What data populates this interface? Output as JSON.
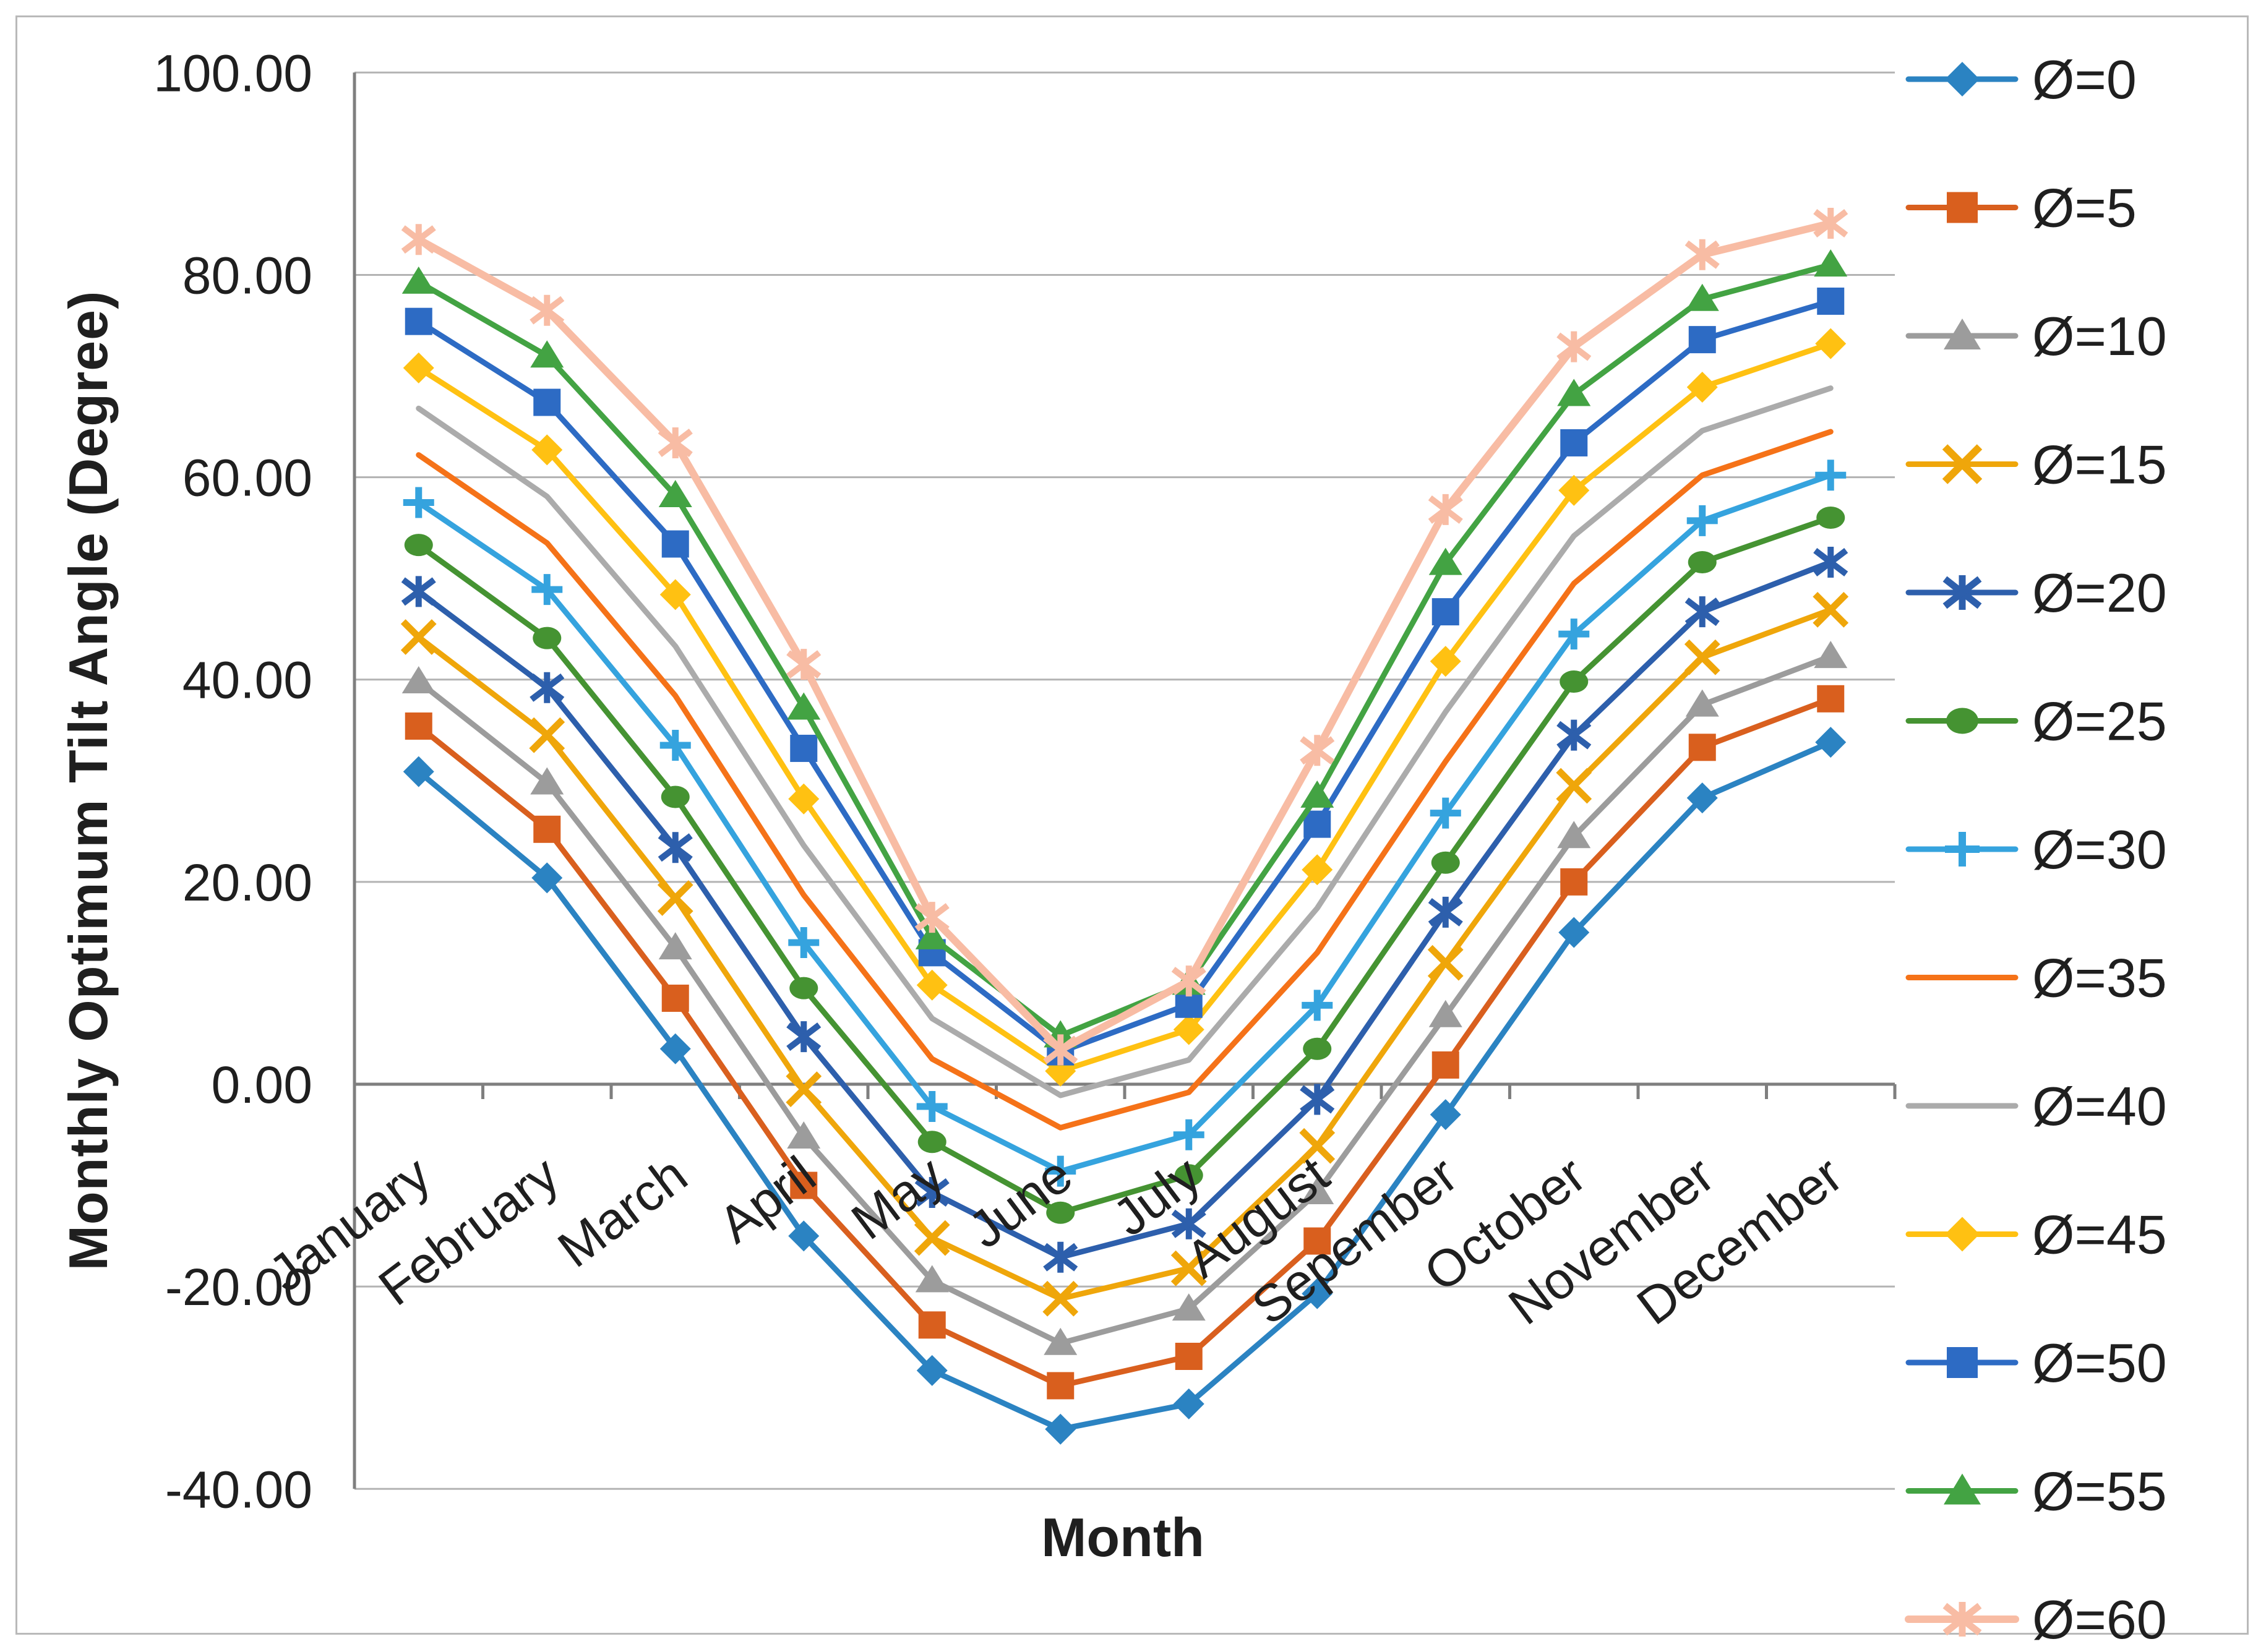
{
  "chart_data": {
    "type": "line",
    "title": "",
    "xlabel": "Month",
    "ylabel": "Monthly Optimum Tilt Angle (Degree)",
    "categories": [
      "January",
      "February",
      "March",
      "April",
      "May",
      "June",
      "July",
      "August",
      "Sepember",
      "October",
      "November",
      "December"
    ],
    "y_ticks": [
      "100.00",
      "80.00",
      "60.00",
      "40.00",
      "20.00",
      "0.00",
      "-20.00",
      "-40.00"
    ],
    "ylim": [
      -40,
      100
    ],
    "grid": true,
    "legend_position": "right",
    "style": {
      "grid_color": "#b3b3b3",
      "axis_color": "#7f7f7f",
      "text_color": "#1f1f1f",
      "background": "#ffffff"
    },
    "series": [
      {
        "name": "Ø=0",
        "color": "#2b83c2",
        "marker": "diamond",
        "values": [
          30.9,
          20.4,
          3.5,
          -15.0,
          -28.3,
          -34.1,
          -31.6,
          -20.7,
          -3.0,
          15.0,
          28.3,
          33.8
        ]
      },
      {
        "name": "Ø=5",
        "color": "#d95f1e",
        "marker": "square",
        "values": [
          35.4,
          25.2,
          8.5,
          -10.0,
          -23.8,
          -29.8,
          -26.9,
          -15.5,
          1.9,
          20.0,
          33.3,
          38.1
        ]
      },
      {
        "name": "Ø=10",
        "color": "#9c9c9c",
        "marker": "triangle",
        "values": [
          39.8,
          29.8,
          13.5,
          -5.2,
          -19.4,
          -25.6,
          -22.2,
          -10.7,
          6.8,
          24.5,
          37.5,
          42.3
        ]
      },
      {
        "name": "Ø=15",
        "color": "#efa60a",
        "marker": "x",
        "values": [
          44.2,
          34.5,
          18.4,
          -0.5,
          -15.2,
          -21.2,
          -18.2,
          -6.1,
          12.0,
          29.5,
          42.2,
          46.9
        ]
      },
      {
        "name": "Ø=20",
        "color": "#2d5fac",
        "marker": "asterisk",
        "values": [
          48.7,
          39.2,
          23.4,
          4.7,
          -10.7,
          -17.1,
          -13.8,
          -1.5,
          17.0,
          34.5,
          46.7,
          51.6
        ]
      },
      {
        "name": "Ø=25",
        "color": "#459332",
        "marker": "circle",
        "values": [
          53.3,
          44.1,
          28.4,
          9.5,
          -5.7,
          -12.7,
          -9.0,
          3.5,
          21.9,
          39.8,
          51.6,
          56.0
        ]
      },
      {
        "name": "Ø=30",
        "color": "#35a3de",
        "marker": "plus",
        "values": [
          57.5,
          48.9,
          33.5,
          14.0,
          -2.2,
          -8.6,
          -5.0,
          7.8,
          26.8,
          44.5,
          55.7,
          60.2
        ]
      },
      {
        "name": "Ø=35",
        "color": "#f57218",
        "marker": "none",
        "values": [
          62.2,
          53.5,
          38.4,
          18.7,
          2.5,
          -4.3,
          -0.8,
          13.0,
          31.9,
          49.5,
          60.2,
          64.5
        ]
      },
      {
        "name": "Ø=40",
        "color": "#ababab",
        "marker": "none",
        "values": [
          66.8,
          58.1,
          43.3,
          23.6,
          6.5,
          -1.1,
          2.4,
          17.4,
          36.8,
          54.2,
          64.6,
          68.8
        ]
      },
      {
        "name": "Ø=45",
        "color": "#ffc112",
        "marker": "diamond",
        "values": [
          70.8,
          62.7,
          48.4,
          28.2,
          9.8,
          1.3,
          5.4,
          21.2,
          41.8,
          58.7,
          68.9,
          73.2
        ]
      },
      {
        "name": "Ø=50",
        "color": "#2d6bc4",
        "marker": "square",
        "values": [
          75.4,
          67.4,
          53.4,
          33.2,
          13.0,
          3.2,
          7.9,
          25.7,
          46.7,
          63.4,
          73.6,
          77.4
        ]
      },
      {
        "name": "Ø=55",
        "color": "#43a343",
        "marker": "triangle",
        "values": [
          79.3,
          72.0,
          58.2,
          37.2,
          14.5,
          4.8,
          10.0,
          28.5,
          51.5,
          68.2,
          77.6,
          81.0
        ]
      },
      {
        "name": "Ø=60",
        "color": "#f8bca4",
        "marker": "asterisk",
        "values": [
          83.5,
          76.5,
          63.4,
          41.5,
          16.5,
          3.4,
          10.2,
          33.0,
          56.8,
          72.9,
          82.0,
          85.1
        ]
      }
    ]
  }
}
